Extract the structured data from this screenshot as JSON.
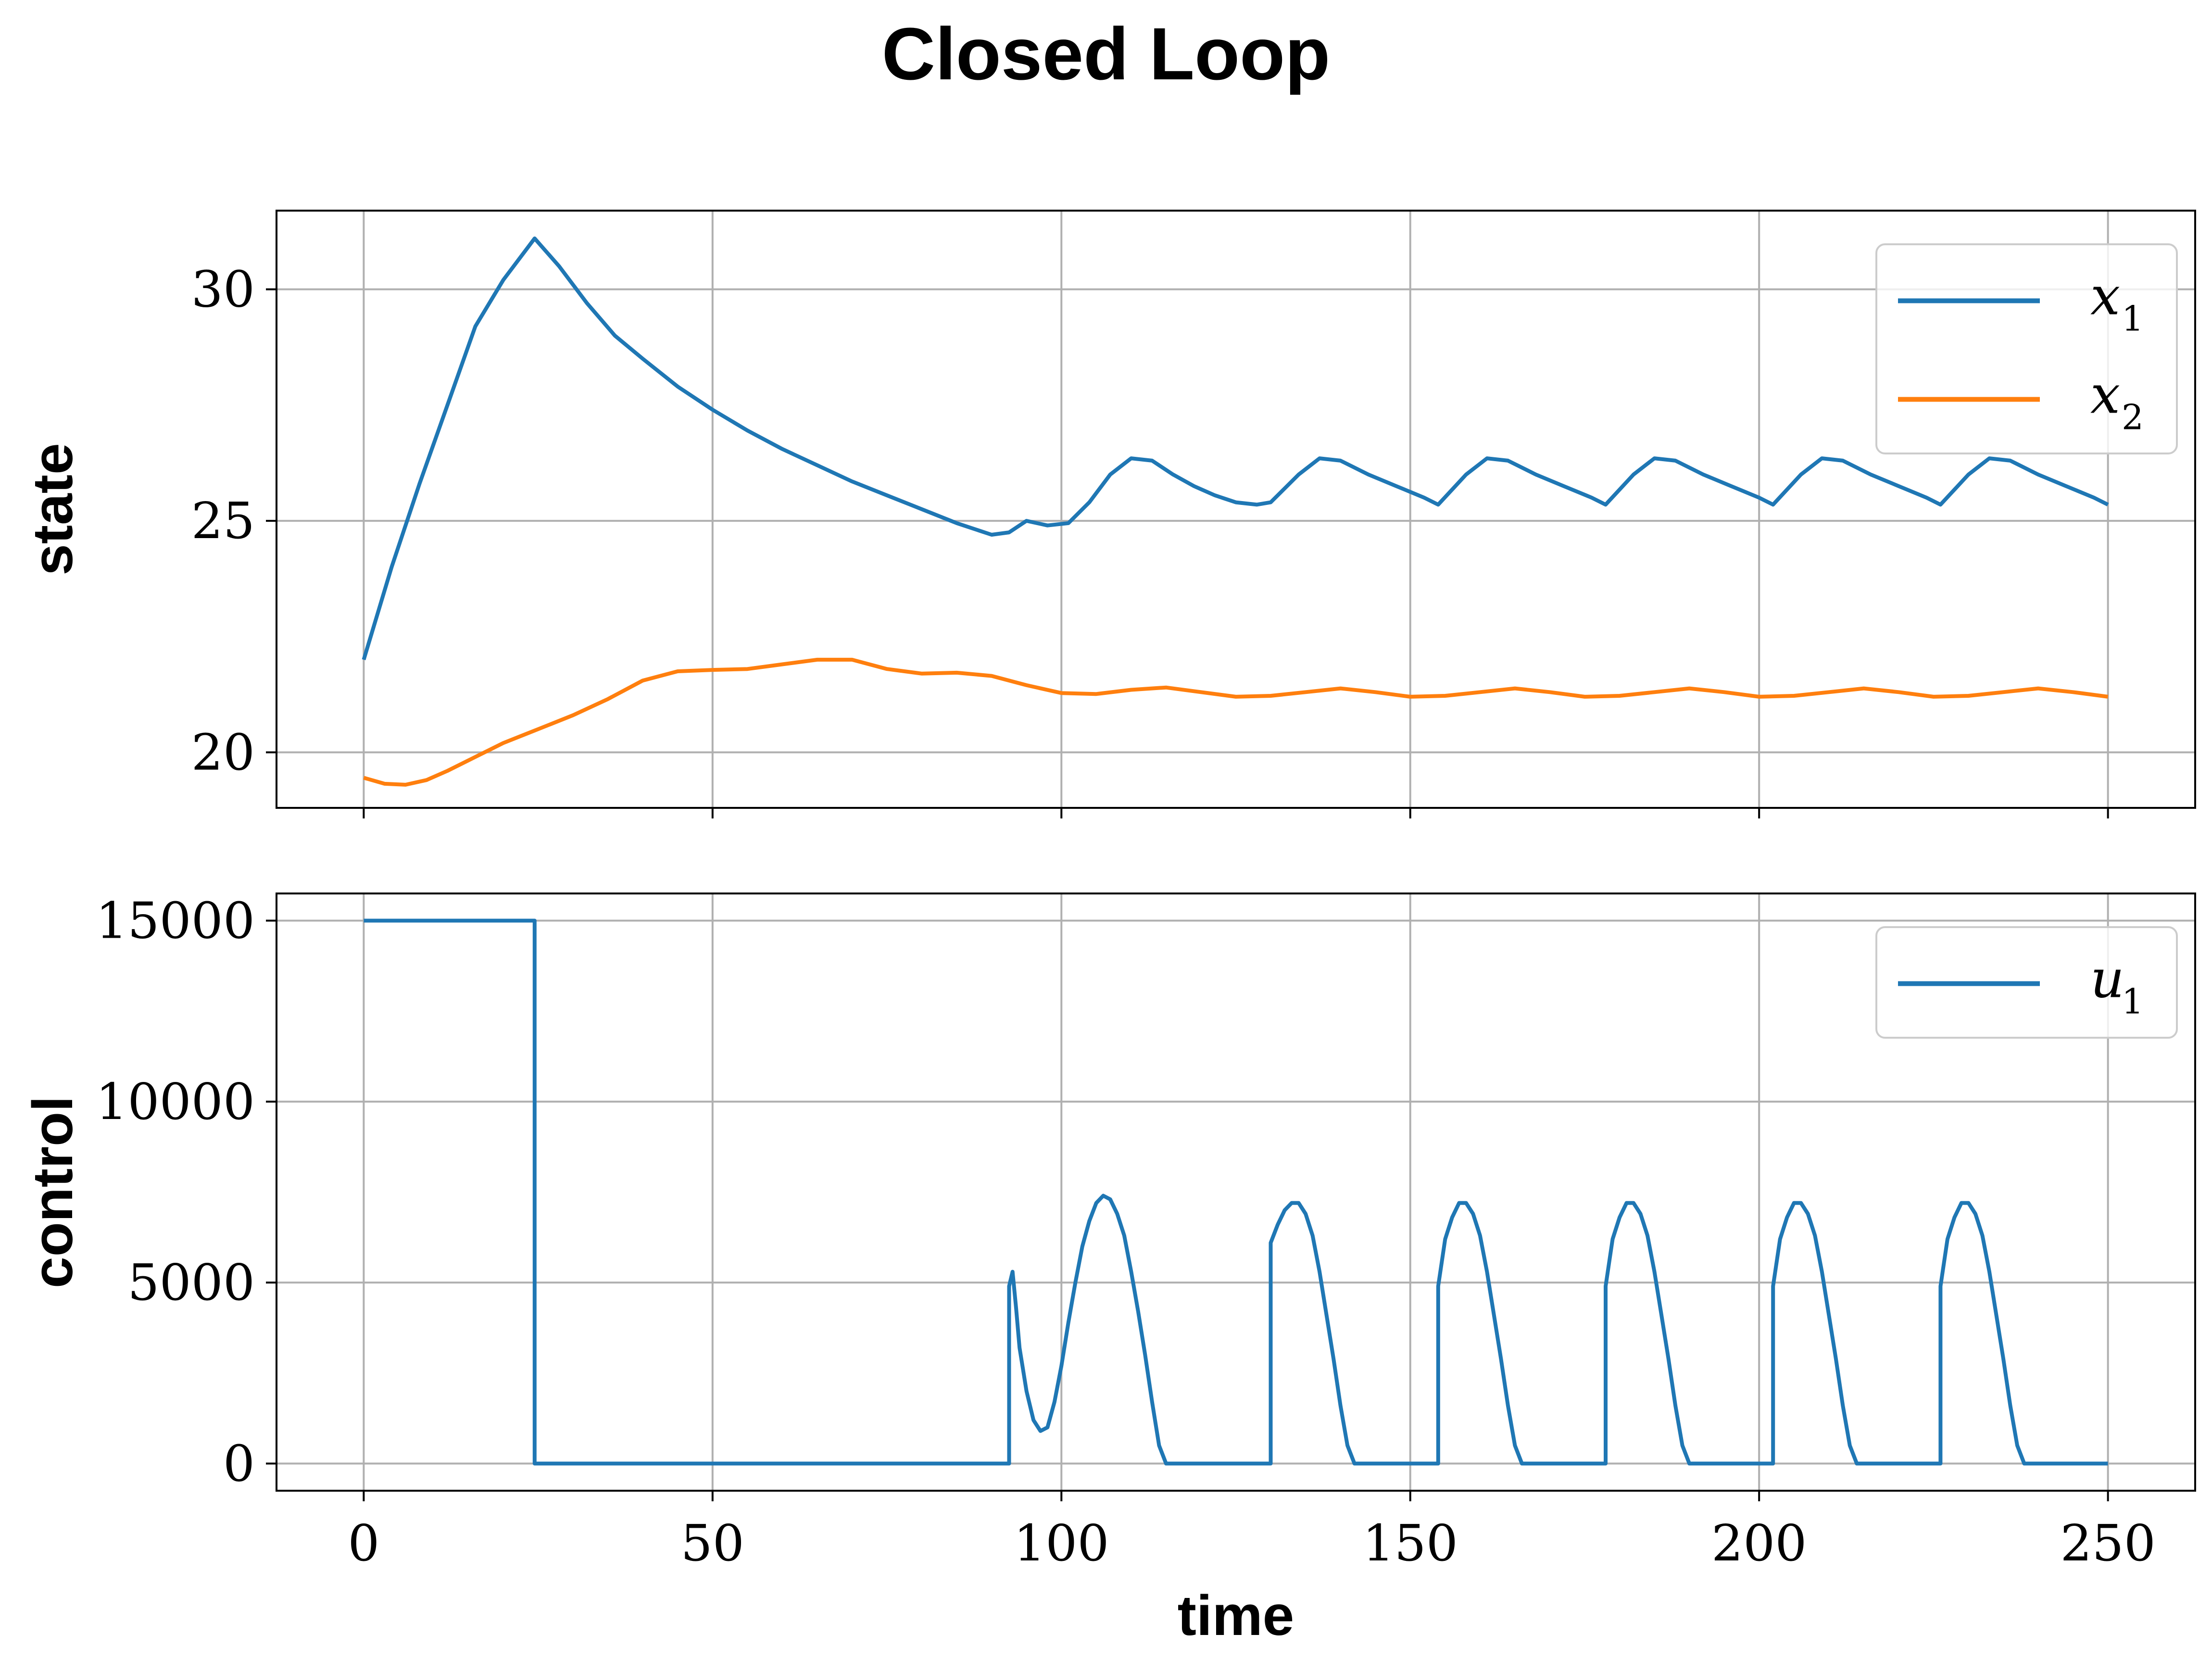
{
  "chart_data": {
    "title": "Closed Loop",
    "xlabel": "time",
    "xlim": [
      -12.5,
      262.5
    ],
    "x_ticks": [
      "0",
      "50",
      "100",
      "150",
      "200",
      "250"
    ],
    "grid": true,
    "panels": [
      {
        "type": "line",
        "ylabel": "state",
        "ylim": [
          18.8,
          31.7
        ],
        "y_ticks": [
          "20",
          "25",
          "30"
        ],
        "legend_position": "top-right",
        "series": [
          {
            "name": "x",
            "subscript": "1",
            "color": "#1f77b4",
            "x": [
              0,
              4,
              8,
              12,
              16,
              20,
              24.5,
              28,
              32,
              36,
              40,
              45,
              50,
              55,
              60,
              65,
              70,
              75,
              80,
              85,
              90,
              92.5,
              95,
              98,
              101,
              104,
              107,
              110,
              113,
              116,
              119,
              122,
              125,
              128,
              130,
              134,
              137,
              140,
              144,
              148,
              152,
              154,
              158,
              161,
              164,
              168,
              172,
              176,
              178,
              182,
              185,
              188,
              192,
              196,
              200,
              202,
              206,
              209,
              212,
              216,
              220,
              224,
              226,
              230,
              233,
              236,
              240,
              244,
              248,
              250
            ],
            "y": [
              22.0,
              24.0,
              25.8,
              27.5,
              29.2,
              30.2,
              31.1,
              30.5,
              29.7,
              29.0,
              28.5,
              27.9,
              27.4,
              26.95,
              26.55,
              26.2,
              25.85,
              25.55,
              25.25,
              24.95,
              24.7,
              24.75,
              25.0,
              24.9,
              24.95,
              25.4,
              26.0,
              26.35,
              26.3,
              26.0,
              25.75,
              25.55,
              25.4,
              25.35,
              25.4,
              26.0,
              26.35,
              26.3,
              26.0,
              25.75,
              25.5,
              25.35,
              26.0,
              26.35,
              26.3,
              26.0,
              25.75,
              25.5,
              25.35,
              26.0,
              26.35,
              26.3,
              26.0,
              25.75,
              25.5,
              25.35,
              26.0,
              26.35,
              26.3,
              26.0,
              25.75,
              25.5,
              25.35,
              26.0,
              26.35,
              26.3,
              26.0,
              25.75,
              25.5,
              25.35
            ]
          },
          {
            "name": "x",
            "subscript": "2",
            "color": "#ff7f0e",
            "x": [
              0,
              3,
              6,
              9,
              12,
              16,
              20,
              25,
              30,
              35,
              40,
              45,
              50,
              55,
              60,
              65,
              70,
              75,
              80,
              85,
              90,
              95,
              100,
              105,
              110,
              115,
              120,
              125,
              130,
              135,
              140,
              145,
              150,
              155,
              160,
              165,
              170,
              175,
              180,
              185,
              190,
              195,
              200,
              205,
              210,
              215,
              220,
              225,
              230,
              235,
              240,
              245,
              250
            ],
            "y": [
              19.45,
              19.32,
              19.3,
              19.4,
              19.6,
              19.9,
              20.2,
              20.5,
              20.8,
              21.15,
              21.55,
              21.75,
              21.78,
              21.8,
              21.9,
              22.0,
              22.0,
              21.8,
              21.7,
              21.72,
              21.65,
              21.45,
              21.28,
              21.26,
              21.35,
              21.4,
              21.3,
              21.2,
              21.22,
              21.3,
              21.38,
              21.3,
              21.2,
              21.22,
              21.3,
              21.38,
              21.3,
              21.2,
              21.22,
              21.3,
              21.38,
              21.3,
              21.2,
              21.22,
              21.3,
              21.38,
              21.3,
              21.2,
              21.22,
              21.3,
              21.38,
              21.3,
              21.2
            ]
          }
        ]
      },
      {
        "type": "line",
        "ylabel": "control",
        "ylim": [
          -750,
          15750
        ],
        "y_ticks": [
          "0",
          "5000",
          "10000",
          "15000"
        ],
        "legend_position": "top-right",
        "series": [
          {
            "name": "u",
            "subscript": "1",
            "color": "#1f77b4",
            "step": true,
            "x": [
              0,
              24.5,
              24.5,
              92.5,
              92.5,
              93,
              93.5,
              94,
              95,
              96,
              97,
              98,
              99,
              100,
              101,
              102,
              103,
              104,
              105,
              106,
              107,
              108,
              109,
              110,
              111,
              112,
              113,
              114,
              115,
              116,
              117,
              118,
              119,
              120,
              121,
              122,
              123,
              124,
              125,
              126,
              127,
              128,
              129,
              130,
              130,
              131,
              132,
              133,
              134,
              135,
              136,
              137,
              138,
              139,
              140,
              141,
              142,
              143,
              144,
              145,
              146,
              147,
              148,
              149,
              150,
              151,
              152,
              153,
              154,
              154,
              155,
              156,
              157,
              158,
              159,
              160,
              161,
              162,
              163,
              164,
              165,
              166,
              167,
              168,
              169,
              170,
              171,
              172,
              173,
              174,
              175,
              176,
              177,
              178,
              178,
              179,
              180,
              181,
              182,
              183,
              184,
              185,
              186,
              187,
              188,
              189,
              190,
              191,
              192,
              193,
              194,
              195,
              196,
              197,
              198,
              199,
              200,
              201,
              202,
              202,
              203,
              204,
              205,
              206,
              207,
              208,
              209,
              210,
              211,
              212,
              213,
              214,
              215,
              216,
              217,
              218,
              219,
              220,
              221,
              222,
              223,
              224,
              225,
              226,
              226,
              227,
              228,
              229,
              230,
              231,
              232,
              233,
              234,
              235,
              236,
              237,
              238,
              239,
              240,
              241,
              242,
              243,
              244,
              245,
              246,
              247,
              248,
              249,
              250
            ],
            "y": [
              15000,
              15000,
              0,
              0,
              4900,
              5300,
              4300,
              3200,
              2000,
              1200,
              900,
              1000,
              1700,
              2700,
              3900,
              5000,
              6000,
              6700,
              7200,
              7400,
              7300,
              6900,
              6300,
              5300,
              4200,
              3000,
              1700,
              500,
              0,
              0,
              0,
              0,
              0,
              0,
              0,
              0,
              0,
              0,
              0,
              0,
              0,
              0,
              0,
              0,
              6100,
              6600,
              7000,
              7200,
              7200,
              6900,
              6300,
              5300,
              4100,
              2900,
              1600,
              500,
              0,
              0,
              0,
              0,
              0,
              0,
              0,
              0,
              0,
              0,
              0,
              0,
              0,
              4900,
              6200,
              6800,
              7200,
              7200,
              6900,
              6300,
              5300,
              4100,
              2900,
              1600,
              500,
              0,
              0,
              0,
              0,
              0,
              0,
              0,
              0,
              0,
              0,
              0,
              0,
              0,
              4900,
              6200,
              6800,
              7200,
              7200,
              6900,
              6300,
              5300,
              4100,
              2900,
              1600,
              500,
              0,
              0,
              0,
              0,
              0,
              0,
              0,
              0,
              0,
              0,
              0,
              0,
              0,
              4900,
              6200,
              6800,
              7200,
              7200,
              6900,
              6300,
              5300,
              4100,
              2900,
              1600,
              500,
              0,
              0,
              0,
              0,
              0,
              0,
              0,
              0,
              0,
              0,
              0,
              0,
              0,
              4900,
              6200,
              6800,
              7200,
              7200,
              6900,
              6300,
              5300,
              4100,
              2900,
              1600,
              500,
              0,
              0,
              0,
              0,
              0,
              0,
              0,
              0,
              0,
              0,
              0,
              0,
              0
            ]
          }
        ]
      }
    ]
  }
}
